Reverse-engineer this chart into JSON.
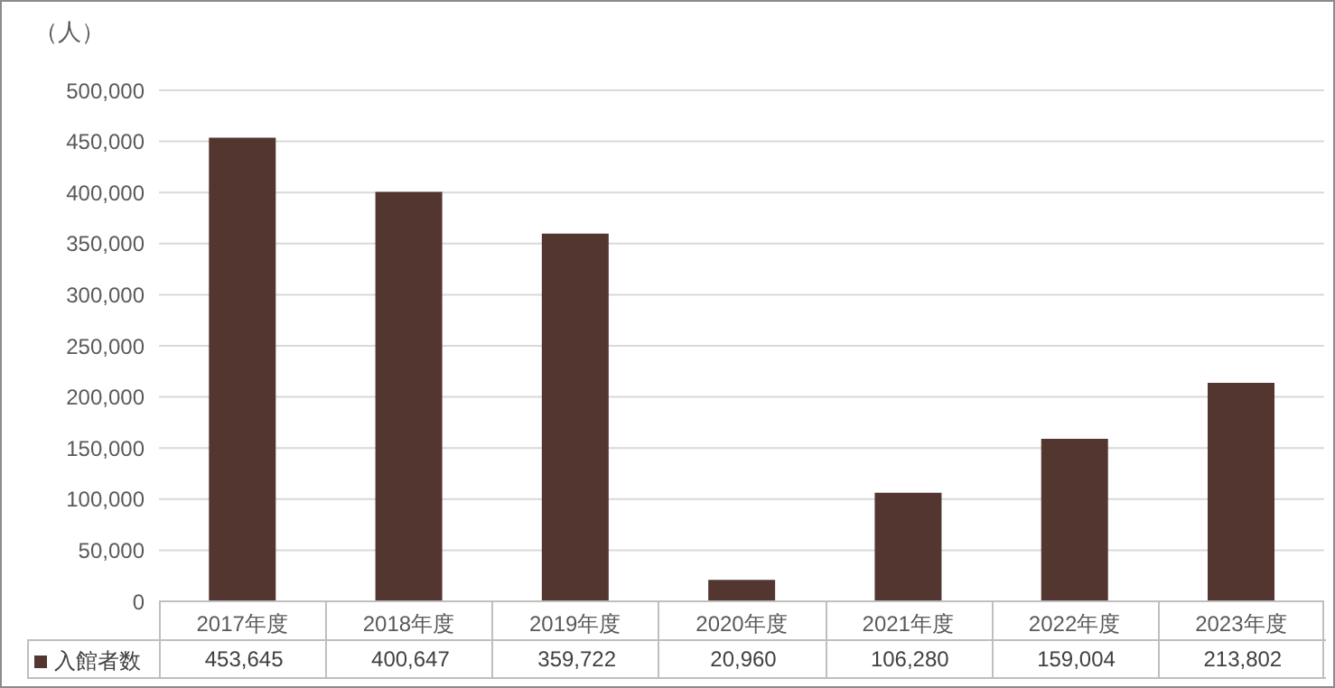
{
  "chart_data": {
    "type": "bar",
    "ylabel": "（人）",
    "categories": [
      "2017年度",
      "2018年度",
      "2019年度",
      "2020年度",
      "2021年度",
      "2022年度",
      "2023年度"
    ],
    "series": [
      {
        "name": "入館者数",
        "color": "#543631",
        "values": [
          453645,
          400647,
          359722,
          20960,
          106280,
          159004,
          213802
        ],
        "value_labels": [
          "453,645",
          "400,647",
          "359,722",
          "20,960",
          "106,280",
          "159,004",
          "213,802"
        ]
      }
    ],
    "ylim": [
      0,
      500000
    ],
    "yticks": [
      0,
      {
        "value": 50000,
        "label": "50,000"
      },
      {
        "value": 100000,
        "label": "100,000"
      },
      {
        "value": 150000,
        "label": "150,000"
      },
      {
        "value": 200000,
        "label": "200,000"
      },
      {
        "value": 250000,
        "label": "250,000"
      },
      {
        "value": 300000,
        "label": "300,000"
      },
      {
        "value": 350000,
        "label": "350,000"
      },
      {
        "value": 400000,
        "label": "400,000"
      },
      {
        "value": 450000,
        "label": "450,000"
      },
      {
        "value": 500000,
        "label": "500,000"
      }
    ],
    "grid": "y",
    "legend": "bottom"
  }
}
